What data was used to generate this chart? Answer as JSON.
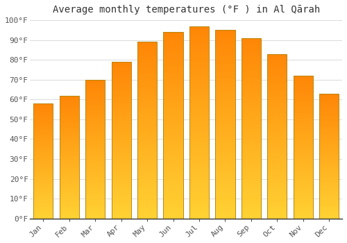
{
  "title": "Average monthly temperatures (°F ) in Al Qārah",
  "months": [
    "Jan",
    "Feb",
    "Mar",
    "Apr",
    "May",
    "Jun",
    "Jul",
    "Aug",
    "Sep",
    "Oct",
    "Nov",
    "Dec"
  ],
  "values": [
    58,
    62,
    70,
    79,
    89,
    94,
    97,
    95,
    91,
    83,
    72,
    63
  ],
  "bar_color_main": "#FFA020",
  "bar_color_light": "#FFD060",
  "bar_edge_color": "#B8860B",
  "ylim": [
    0,
    100
  ],
  "yticks": [
    0,
    10,
    20,
    30,
    40,
    50,
    60,
    70,
    80,
    90,
    100
  ],
  "ytick_labels": [
    "0°F",
    "10°F",
    "20°F",
    "30°F",
    "40°F",
    "50°F",
    "60°F",
    "70°F",
    "80°F",
    "90°F",
    "100°F"
  ],
  "background_color": "#ffffff",
  "grid_color": "#dddddd",
  "title_fontsize": 10,
  "tick_fontsize": 8,
  "bar_width": 0.75
}
